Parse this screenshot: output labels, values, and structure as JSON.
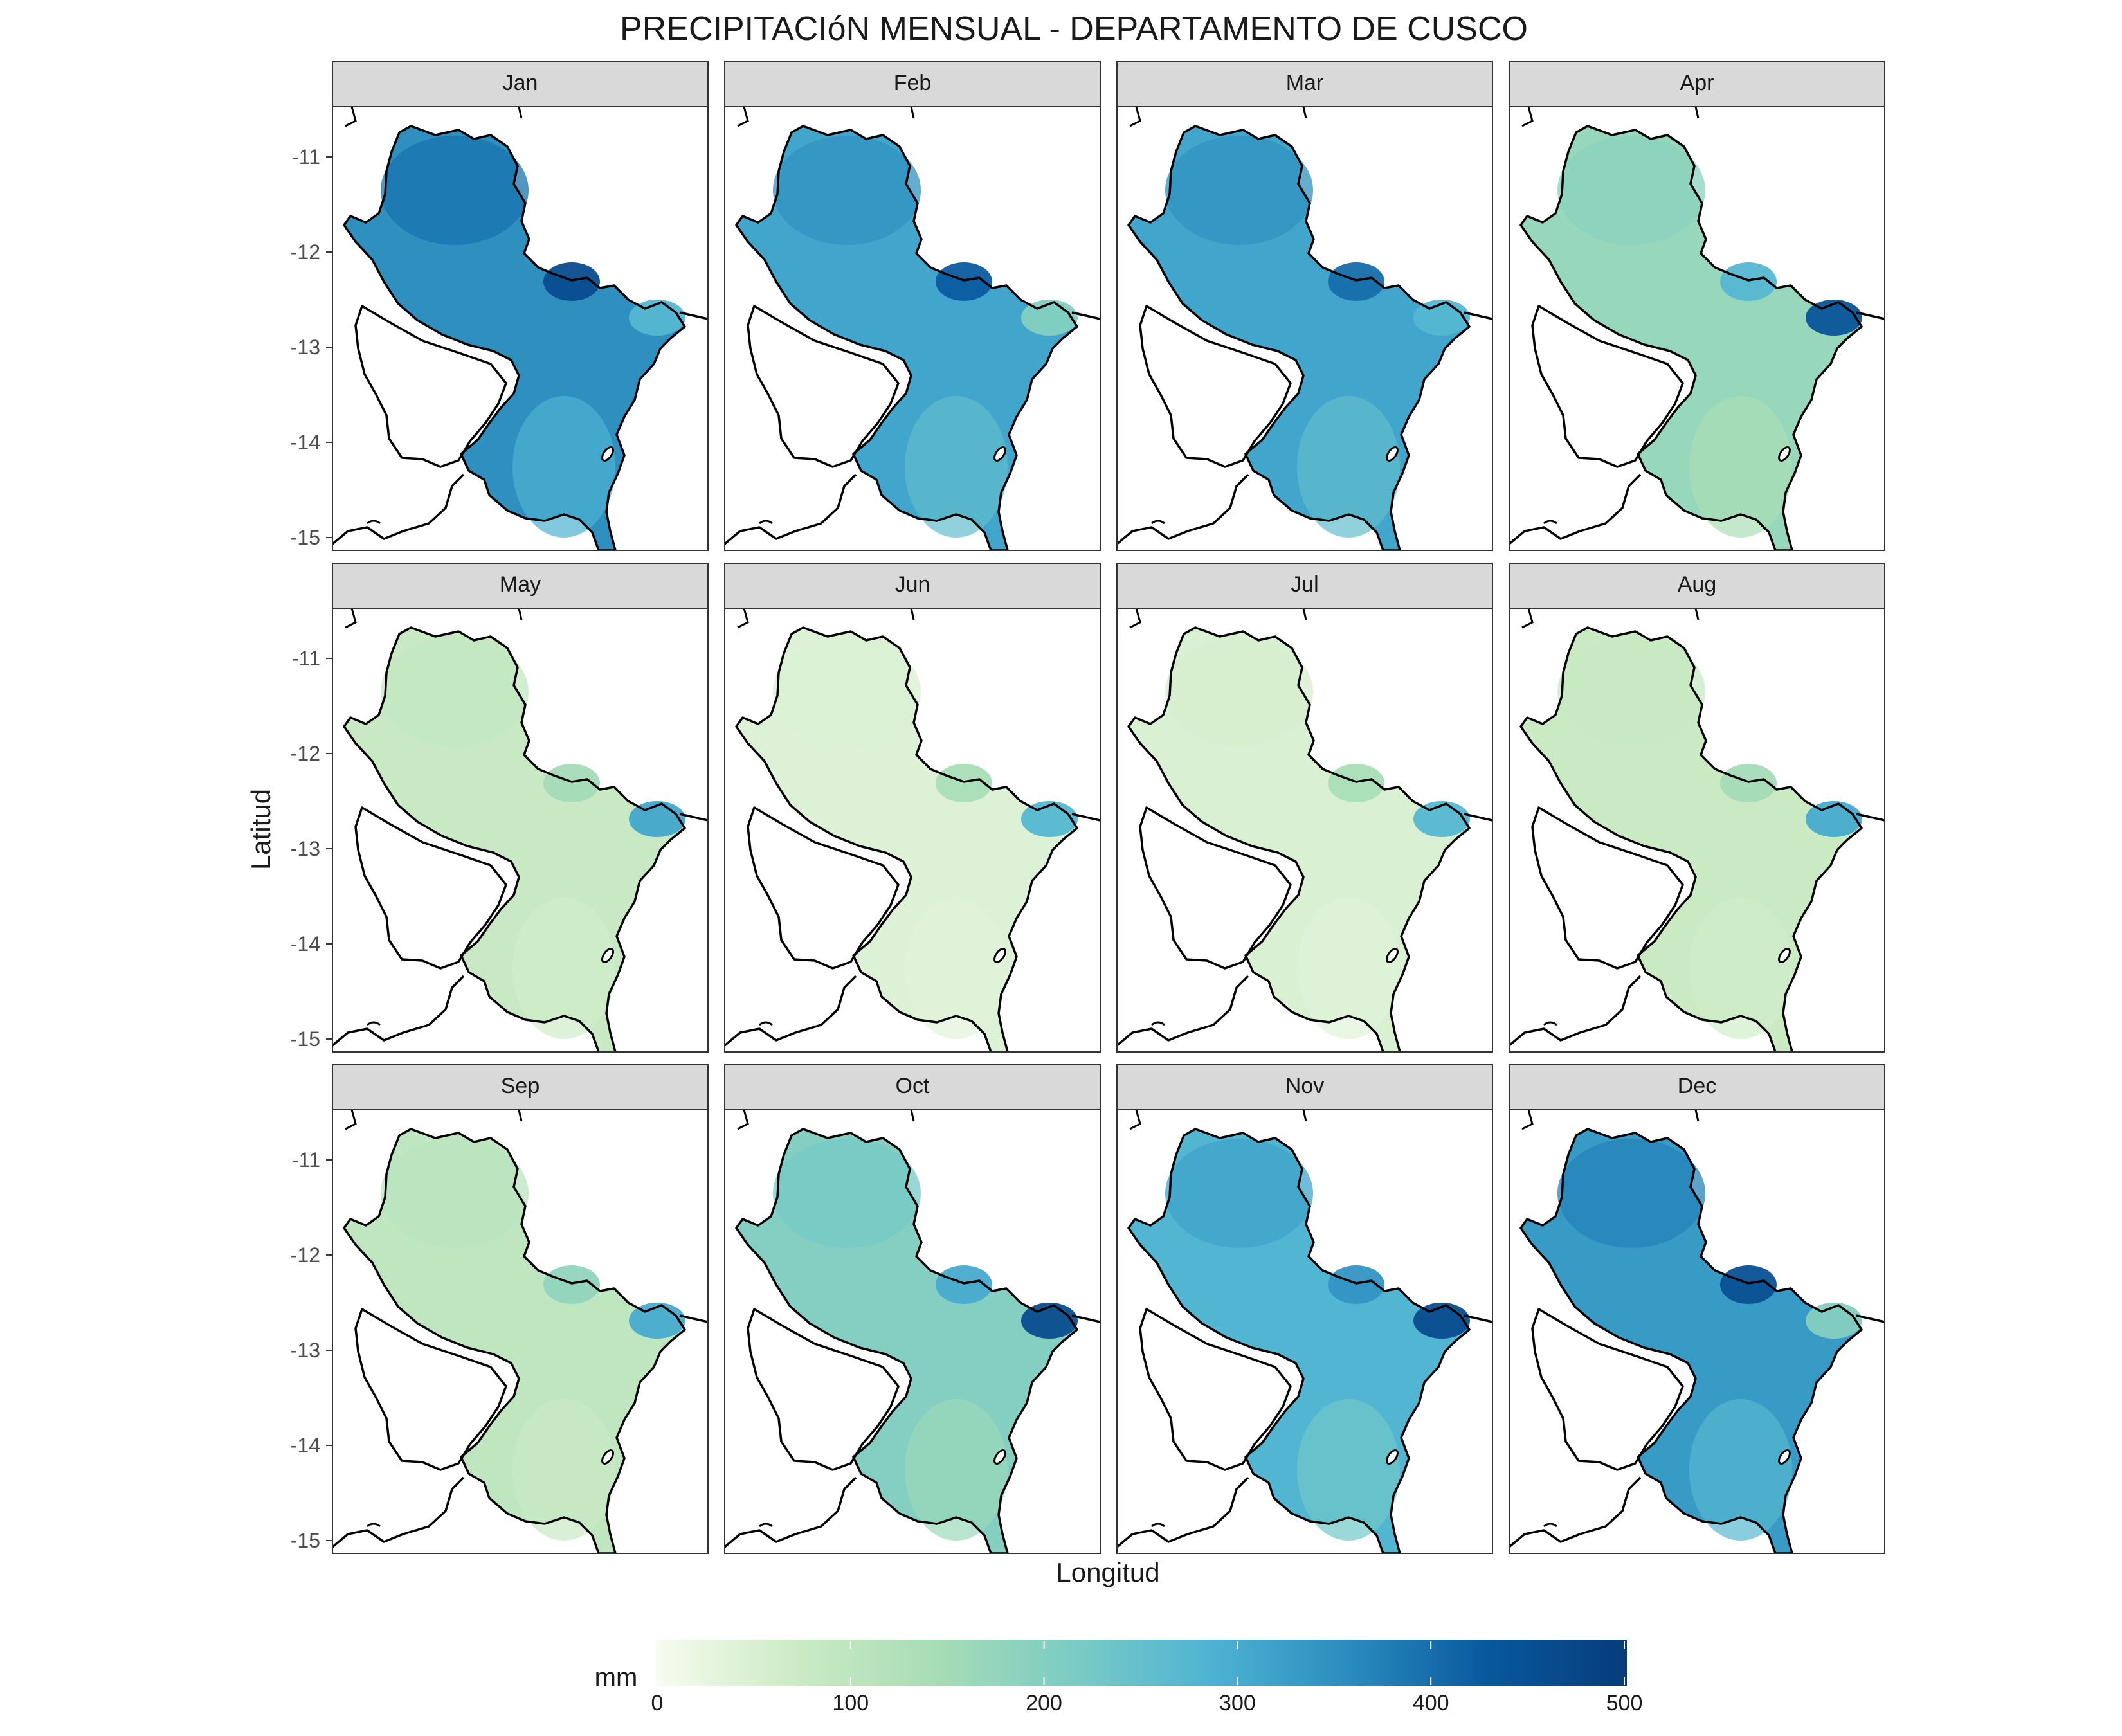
{
  "title": "PRECIPITACIóN MENSUAL - DEPARTAMENTO DE CUSCO",
  "x_axis_label": "Longitud",
  "y_axis_label": "Latitud",
  "y_tick_labels": [
    "-11",
    "-12",
    "-13",
    "-14",
    "-15"
  ],
  "panels": [
    {
      "label": "Jan",
      "intensity": 0.7,
      "hotspot": 0.92,
      "east_spot": 0.55
    },
    {
      "label": "Feb",
      "intensity": 0.62,
      "hotspot": 0.85,
      "east_spot": 0.4
    },
    {
      "label": "Mar",
      "intensity": 0.62,
      "hotspot": 0.8,
      "east_spot": 0.55
    },
    {
      "label": "Apr",
      "intensity": 0.34,
      "hotspot": 0.55,
      "east_spot": 0.88
    },
    {
      "label": "May",
      "intensity": 0.16,
      "hotspot": 0.3,
      "east_spot": 0.62
    },
    {
      "label": "Jun",
      "intensity": 0.09,
      "hotspot": 0.28,
      "east_spot": 0.55
    },
    {
      "label": "Jul",
      "intensity": 0.1,
      "hotspot": 0.28,
      "east_spot": 0.55
    },
    {
      "label": "Aug",
      "intensity": 0.15,
      "hotspot": 0.3,
      "east_spot": 0.6
    },
    {
      "label": "Sep",
      "intensity": 0.19,
      "hotspot": 0.36,
      "east_spot": 0.6
    },
    {
      "label": "Oct",
      "intensity": 0.4,
      "hotspot": 0.6,
      "east_spot": 0.92
    },
    {
      "label": "Nov",
      "intensity": 0.56,
      "hotspot": 0.68,
      "east_spot": 0.92
    },
    {
      "label": "Dec",
      "intensity": 0.66,
      "hotspot": 0.9,
      "east_spot": 0.4
    }
  ],
  "legend": {
    "title": "mm",
    "tick_labels": [
      "0",
      "100",
      "200",
      "300",
      "400",
      "500"
    ],
    "colors": [
      "#f7fcf0",
      "#ccebc5",
      "#a8ddb5",
      "#7bccc4",
      "#4eb3d3",
      "#2b8cbe",
      "#08589e",
      "#073c7a"
    ]
  },
  "colors": {
    "strip_fill": "#d9d9d9",
    "panel_border": "#333333",
    "outline": "#000000",
    "text": "#1a1a1a",
    "tick_text": "#4d4d4d"
  }
}
